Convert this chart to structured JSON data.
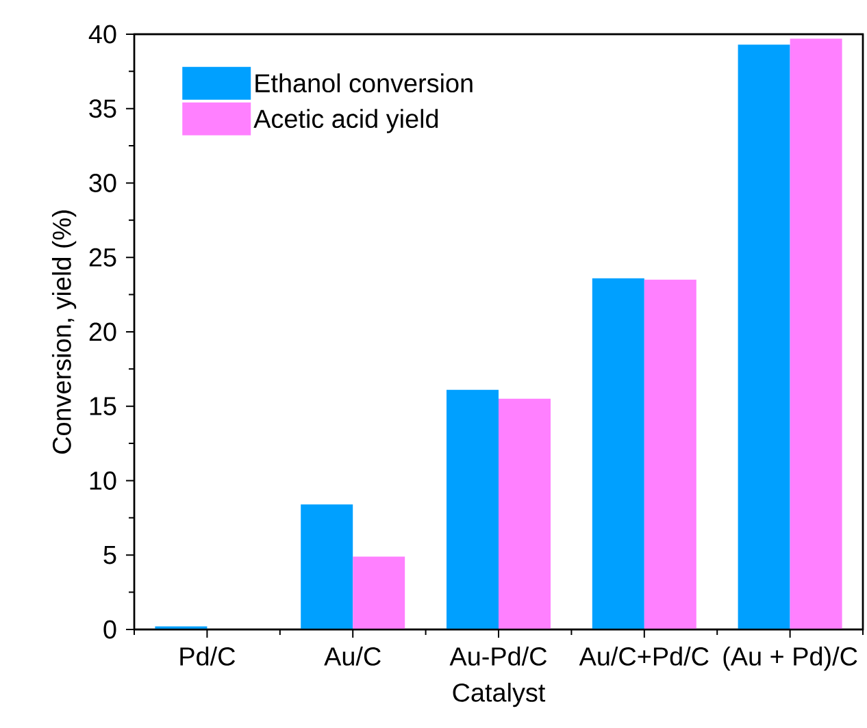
{
  "chart_data": {
    "type": "bar",
    "xlabel": "Catalyst",
    "ylabel": "Conversion, yield (%)",
    "categories": [
      "Pd/C",
      "Au/C",
      "Au-Pd/C",
      "Au/C+Pd/C",
      "(Au + Pd)/C"
    ],
    "series": [
      {
        "name": "Ethanol conversion",
        "color": "#00a0ff",
        "values": [
          0.2,
          8.4,
          16.1,
          23.6,
          39.3
        ]
      },
      {
        "name": "Acetic acid yield",
        "color": "#ff80ff",
        "values": [
          0,
          4.9,
          15.5,
          23.5,
          39.7
        ]
      }
    ],
    "ylim": [
      0,
      40
    ],
    "yticks": [
      0,
      5,
      10,
      15,
      20,
      25,
      30,
      35,
      40
    ],
    "grid": false,
    "legend": "top left"
  }
}
